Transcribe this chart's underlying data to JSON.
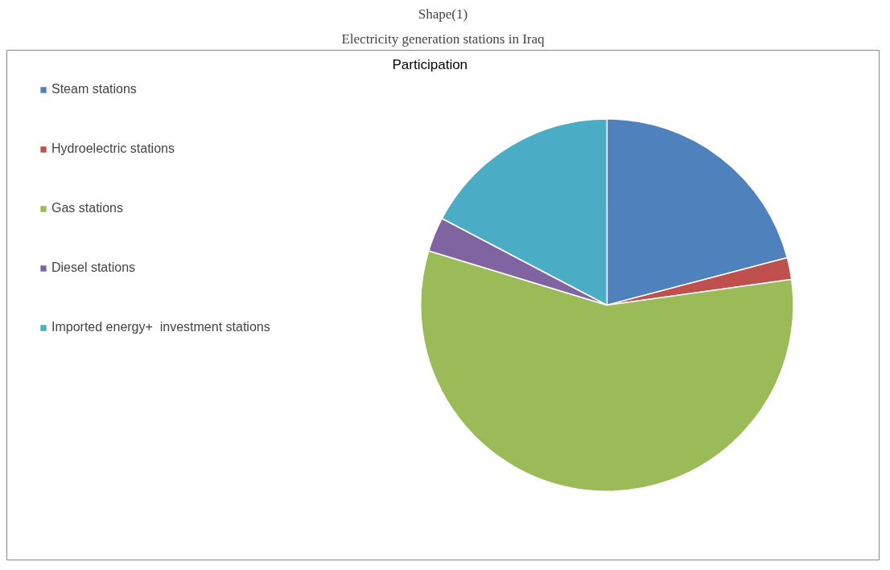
{
  "chart_data": {
    "type": "pie",
    "title": "Participation",
    "annotations": [
      "Shape(1)",
      "Electricity generation stations in Iraq"
    ],
    "categories": [
      "Steam stations",
      "Hydroelectric stations",
      "Gas stations",
      "Diesel stations",
      "Imported energy+  investment stations"
    ],
    "values": [
      20.9,
      1.9,
      56.9,
      3.0,
      17.3
    ],
    "colors": [
      "#4f81bd",
      "#c0504d",
      "#9bbb59",
      "#8064a2",
      "#4bacc6"
    ],
    "legend": "left"
  }
}
